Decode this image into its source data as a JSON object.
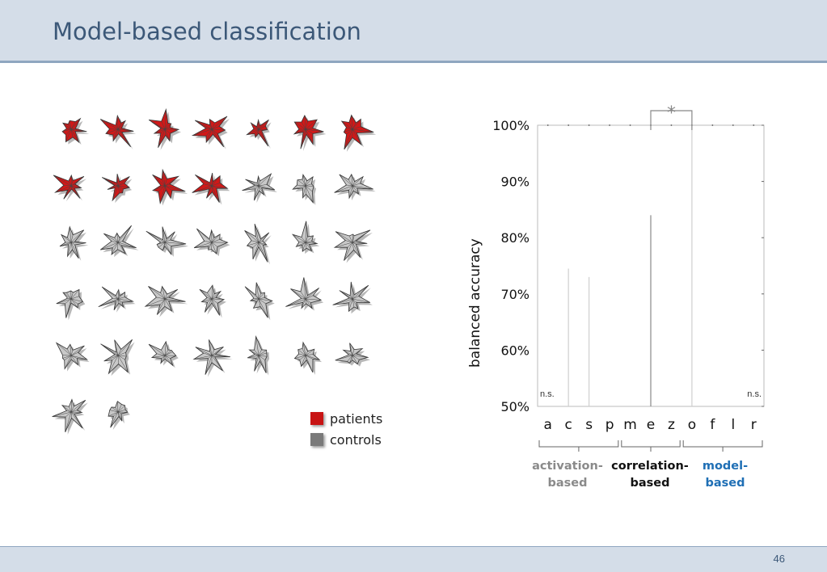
{
  "slide": {
    "title": "Model-based classification",
    "page_number": "46"
  },
  "legend": {
    "items": [
      {
        "label": "patients",
        "color": "#c81414"
      },
      {
        "label": "controls",
        "color": "#7a7a7a"
      }
    ]
  },
  "glyphs": {
    "patient_color": "#d01818",
    "control_color": "#c8c8c8",
    "rows": [
      [
        "patient",
        "patient",
        "patient",
        "patient",
        "patient",
        "patient",
        "patient"
      ],
      [
        "patient",
        "patient",
        "patient",
        "patient",
        "control",
        "control",
        "control"
      ],
      [
        "control",
        "control",
        "control",
        "control",
        "control",
        "control",
        "control"
      ],
      [
        "control",
        "control",
        "control",
        "control",
        "control",
        "control",
        "control"
      ],
      [
        "control",
        "control",
        "control",
        "control",
        "control",
        "control",
        "control"
      ],
      [
        "control",
        "control"
      ]
    ]
  },
  "chart_data": {
    "type": "bar",
    "ylabel": "balanced accuracy",
    "ylim": [
      50,
      100
    ],
    "yticks": [
      "50%",
      "60%",
      "70%",
      "80%",
      "90%",
      "100%"
    ],
    "categories": [
      "a",
      "c",
      "s",
      "p",
      "m",
      "e",
      "z",
      "o",
      "f",
      "l",
      "r"
    ],
    "values": [
      null,
      74.5,
      73,
      null,
      null,
      84,
      null,
      100,
      null,
      null,
      null
    ],
    "annotations": {
      "left": "n.s.",
      "right": "n.s.",
      "significance": "*"
    },
    "groups": [
      {
        "label_line1": "activation-",
        "label_line2": "based",
        "color": "#8a8a8a"
      },
      {
        "label_line1": "correlation-",
        "label_line2": "based",
        "color": "#111111"
      },
      {
        "label_line1": "model-",
        "label_line2": "based",
        "color": "#1f6fb5"
      }
    ]
  }
}
